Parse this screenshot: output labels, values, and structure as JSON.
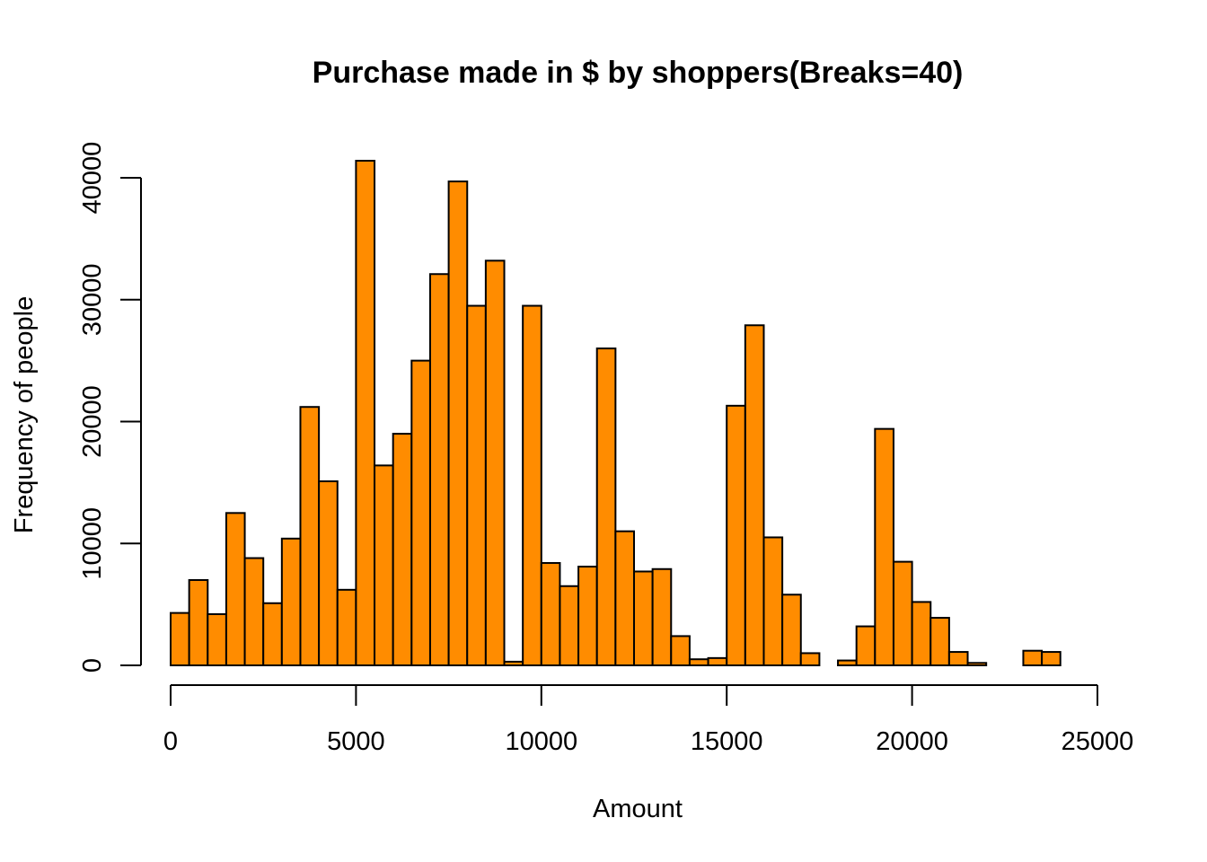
{
  "chart_data": {
    "type": "bar",
    "title": "Purchase made in $ by shoppers(Breaks=40)",
    "xlabel": "Amount",
    "ylabel": "Frequency of people",
    "bar_color": "#ff8c00",
    "bin_width": 500,
    "bin_start": 0,
    "values": [
      4300,
      7000,
      4200,
      12500,
      8800,
      5100,
      10400,
      21200,
      15100,
      6200,
      41400,
      16400,
      19000,
      25000,
      32100,
      39700,
      29500,
      33200,
      300,
      29500,
      8400,
      6500,
      8100,
      26000,
      11000,
      7700,
      7900,
      2400,
      500,
      600,
      21300,
      27900,
      10500,
      5800,
      1000,
      0,
      400,
      3200,
      19400,
      8500,
      5200,
      3900,
      1100,
      200,
      0,
      0,
      1200,
      1100
    ],
    "xlim": [
      0,
      25000
    ],
    "ylim": [
      0,
      41400
    ],
    "x_ticks": [
      "0",
      "5000",
      "10000",
      "15000",
      "20000",
      "25000"
    ],
    "y_ticks": [
      "0",
      "10000",
      "20000",
      "30000",
      "40000"
    ],
    "grid": false,
    "legend": "none"
  }
}
